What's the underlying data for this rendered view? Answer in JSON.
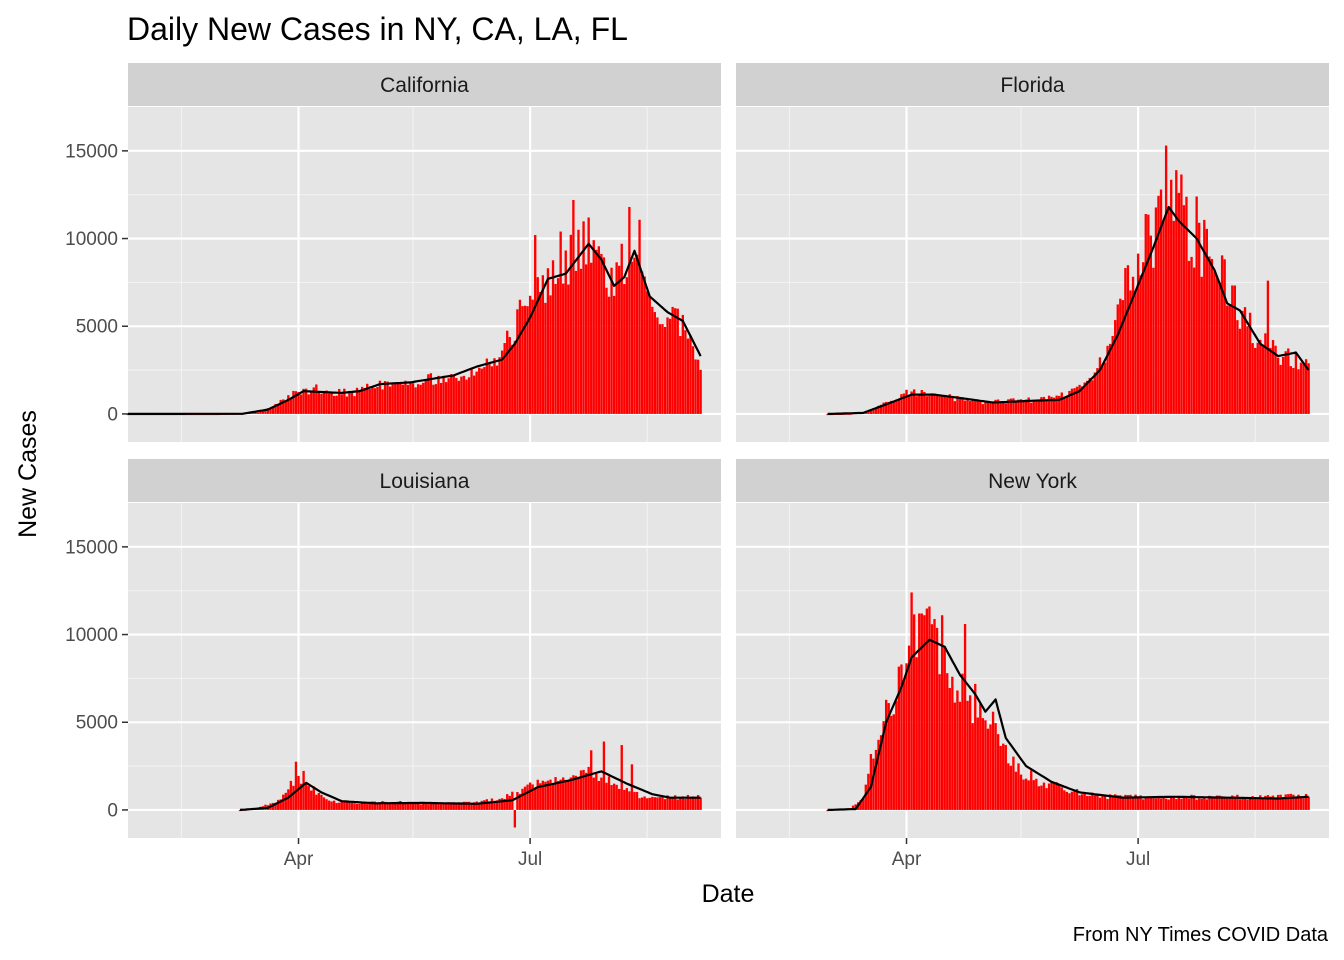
{
  "chart_data": {
    "type": "bar",
    "title": "Daily New Cases in NY, CA, LA, FL",
    "xlabel": "Date",
    "ylabel": "New Cases",
    "caption": "From NY Times COVID Data",
    "x_range": [
      "2020-01-25",
      "2020-09-14"
    ],
    "ylim": [
      -1600,
      17500
    ],
    "y_ticks": [
      0,
      5000,
      10000,
      15000
    ],
    "y_tick_labels": [
      "0",
      "5000",
      "10000",
      "15000"
    ],
    "x_ticks": [
      {
        "date": "2020-04-01",
        "label": "Apr"
      },
      {
        "date": "2020-07-01",
        "label": "Jul"
      }
    ],
    "x_minor_ticks": [
      "2020-02-15",
      "2020-05-16",
      "2020-08-16"
    ],
    "grid": true,
    "legend": "none",
    "bar_color": "#ff0000",
    "line_color": "#000000",
    "panel_background": "#e5e5e5",
    "strip_background": "#d1d1d1",
    "series_format": "each series lists one value per day from start_date to end_date",
    "panels": [
      {
        "name": "California",
        "start_date": "2020-01-25",
        "end_date": "2020-09-06",
        "daily_anchors": [
          [
            "2020-01-25",
            0
          ],
          [
            "2020-02-29",
            2
          ],
          [
            "2020-03-10",
            30
          ],
          [
            "2020-03-17",
            120
          ],
          [
            "2020-03-22",
            400
          ],
          [
            "2020-03-27",
            900
          ],
          [
            "2020-04-02",
            1300
          ],
          [
            "2020-04-08",
            1400
          ],
          [
            "2020-04-15",
            1250
          ],
          [
            "2020-04-22",
            1200
          ],
          [
            "2020-05-01",
            1600
          ],
          [
            "2020-05-15",
            1750
          ],
          [
            "2020-06-01",
            2200
          ],
          [
            "2020-06-10",
            2600
          ],
          [
            "2020-06-20",
            3300
          ],
          [
            "2020-06-25",
            5200
          ],
          [
            "2020-07-01",
            6800
          ],
          [
            "2020-07-08",
            8000
          ],
          [
            "2020-07-15",
            8400
          ],
          [
            "2020-07-22",
            9800
          ],
          [
            "2020-07-28",
            8500
          ],
          [
            "2020-08-03",
            7200
          ],
          [
            "2020-08-08",
            8900
          ],
          [
            "2020-08-13",
            9600
          ],
          [
            "2020-08-18",
            6500
          ],
          [
            "2020-08-23",
            5700
          ],
          [
            "2020-08-28",
            5400
          ],
          [
            "2020-09-02",
            4200
          ],
          [
            "2020-09-06",
            3100
          ]
        ],
        "peaks": [
          [
            "2020-07-18",
            12200
          ],
          [
            "2020-08-09",
            11800
          ],
          [
            "2020-07-24",
            11200
          ],
          [
            "2020-07-13",
            10400
          ],
          [
            "2020-07-20",
            10500
          ],
          [
            "2020-08-16",
            7000
          ],
          [
            "2020-07-03",
            10200
          ]
        ],
        "avg_anchors": [
          [
            "2020-01-25",
            0
          ],
          [
            "2020-03-10",
            10
          ],
          [
            "2020-03-20",
            250
          ],
          [
            "2020-03-28",
            800
          ],
          [
            "2020-04-03",
            1300
          ],
          [
            "2020-04-10",
            1250
          ],
          [
            "2020-04-18",
            1200
          ],
          [
            "2020-04-25",
            1300
          ],
          [
            "2020-05-03",
            1700
          ],
          [
            "2020-05-15",
            1800
          ],
          [
            "2020-06-01",
            2200
          ],
          [
            "2020-06-10",
            2700
          ],
          [
            "2020-06-20",
            3100
          ],
          [
            "2020-06-25",
            4000
          ],
          [
            "2020-07-01",
            5500
          ],
          [
            "2020-07-08",
            7700
          ],
          [
            "2020-07-15",
            8000
          ],
          [
            "2020-07-24",
            9700
          ],
          [
            "2020-07-29",
            8800
          ],
          [
            "2020-08-03",
            7300
          ],
          [
            "2020-08-07",
            7800
          ],
          [
            "2020-08-11",
            9300
          ],
          [
            "2020-08-17",
            6700
          ],
          [
            "2020-08-24",
            5800
          ],
          [
            "2020-08-30",
            5300
          ],
          [
            "2020-09-06",
            3300
          ]
        ]
      },
      {
        "name": "Florida",
        "start_date": "2020-03-01",
        "end_date": "2020-09-06",
        "daily_anchors": [
          [
            "2020-03-01",
            0
          ],
          [
            "2020-03-10",
            20
          ],
          [
            "2020-03-17",
            150
          ],
          [
            "2020-03-25",
            700
          ],
          [
            "2020-04-01",
            1200
          ],
          [
            "2020-04-08",
            1150
          ],
          [
            "2020-04-20",
            900
          ],
          [
            "2020-05-01",
            700
          ],
          [
            "2020-05-15",
            750
          ],
          [
            "2020-05-29",
            900
          ],
          [
            "2020-06-07",
            1300
          ],
          [
            "2020-06-14",
            2200
          ],
          [
            "2020-06-20",
            4000
          ],
          [
            "2020-06-25",
            7000
          ],
          [
            "2020-07-01",
            8500
          ],
          [
            "2020-07-08",
            10500
          ],
          [
            "2020-07-12",
            12500
          ],
          [
            "2020-07-18",
            11500
          ],
          [
            "2020-07-25",
            10000
          ],
          [
            "2020-08-01",
            8000
          ],
          [
            "2020-08-08",
            6500
          ],
          [
            "2020-08-15",
            4800
          ],
          [
            "2020-08-22",
            3600
          ],
          [
            "2020-08-29",
            3200
          ],
          [
            "2020-09-06",
            2600
          ]
        ],
        "peaks": [
          [
            "2020-07-12",
            15300
          ],
          [
            "2020-07-16",
            13900
          ],
          [
            "2020-07-24",
            12400
          ],
          [
            "2020-07-04",
            11400
          ],
          [
            "2020-08-21",
            7600
          ],
          [
            "2020-07-19",
            11900
          ]
        ],
        "avg_anchors": [
          [
            "2020-03-01",
            0
          ],
          [
            "2020-03-15",
            60
          ],
          [
            "2020-03-25",
            600
          ],
          [
            "2020-04-03",
            1100
          ],
          [
            "2020-04-12",
            1100
          ],
          [
            "2020-04-25",
            850
          ],
          [
            "2020-05-05",
            650
          ],
          [
            "2020-05-20",
            750
          ],
          [
            "2020-05-31",
            800
          ],
          [
            "2020-06-08",
            1300
          ],
          [
            "2020-06-16",
            2500
          ],
          [
            "2020-06-23",
            4500
          ],
          [
            "2020-06-30",
            7000
          ],
          [
            "2020-07-07",
            9500
          ],
          [
            "2020-07-13",
            11800
          ],
          [
            "2020-07-17",
            11000
          ],
          [
            "2020-07-24",
            10000
          ],
          [
            "2020-07-31",
            8200
          ],
          [
            "2020-08-05",
            6300
          ],
          [
            "2020-08-10",
            5900
          ],
          [
            "2020-08-18",
            4000
          ],
          [
            "2020-08-25",
            3300
          ],
          [
            "2020-09-01",
            3500
          ],
          [
            "2020-09-06",
            2500
          ]
        ]
      },
      {
        "name": "Louisiana",
        "start_date": "2020-03-09",
        "end_date": "2020-09-06",
        "daily_anchors": [
          [
            "2020-03-09",
            0
          ],
          [
            "2020-03-16",
            100
          ],
          [
            "2020-03-24",
            500
          ],
          [
            "2020-03-29",
            1500
          ],
          [
            "2020-04-03",
            1900
          ],
          [
            "2020-04-08",
            1000
          ],
          [
            "2020-04-15",
            500
          ],
          [
            "2020-04-25",
            400
          ],
          [
            "2020-05-10",
            450
          ],
          [
            "2020-05-25",
            350
          ],
          [
            "2020-06-08",
            400
          ],
          [
            "2020-06-20",
            650
          ],
          [
            "2020-06-28",
            1200
          ],
          [
            "2020-07-06",
            1700
          ],
          [
            "2020-07-14",
            2000
          ],
          [
            "2020-07-24",
            2300
          ],
          [
            "2020-08-03",
            1600
          ],
          [
            "2020-08-13",
            800
          ],
          [
            "2020-08-25",
            700
          ],
          [
            "2020-09-06",
            750
          ]
        ],
        "peaks": [
          [
            "2020-03-31",
            2750
          ],
          [
            "2020-07-30",
            3900
          ],
          [
            "2020-08-06",
            3700
          ],
          [
            "2020-07-25",
            3400
          ],
          [
            "2020-06-25",
            -1000
          ],
          [
            "2020-08-10",
            2600
          ]
        ],
        "avg_anchors": [
          [
            "2020-03-09",
            0
          ],
          [
            "2020-03-20",
            120
          ],
          [
            "2020-03-28",
            700
          ],
          [
            "2020-04-04",
            1550
          ],
          [
            "2020-04-10",
            1000
          ],
          [
            "2020-04-18",
            500
          ],
          [
            "2020-05-01",
            380
          ],
          [
            "2020-05-20",
            400
          ],
          [
            "2020-06-10",
            350
          ],
          [
            "2020-06-24",
            550
          ],
          [
            "2020-07-04",
            1300
          ],
          [
            "2020-07-17",
            1700
          ],
          [
            "2020-07-29",
            2200
          ],
          [
            "2020-08-08",
            1500
          ],
          [
            "2020-08-18",
            900
          ],
          [
            "2020-08-25",
            700
          ],
          [
            "2020-09-06",
            700
          ]
        ]
      },
      {
        "name": "New York",
        "start_date": "2020-03-01",
        "end_date": "2020-09-06",
        "daily_anchors": [
          [
            "2020-03-01",
            0
          ],
          [
            "2020-03-10",
            100
          ],
          [
            "2020-03-15",
            700
          ],
          [
            "2020-03-19",
            3500
          ],
          [
            "2020-03-24",
            6000
          ],
          [
            "2020-03-30",
            7500
          ],
          [
            "2020-04-05",
            9800
          ],
          [
            "2020-04-10",
            10000
          ],
          [
            "2020-04-16",
            8500
          ],
          [
            "2020-04-22",
            7000
          ],
          [
            "2020-04-28",
            6000
          ],
          [
            "2020-05-05",
            4500
          ],
          [
            "2020-05-14",
            2400
          ],
          [
            "2020-05-24",
            1600
          ],
          [
            "2020-06-04",
            1100
          ],
          [
            "2020-06-20",
            750
          ],
          [
            "2020-07-10",
            750
          ],
          [
            "2020-08-01",
            700
          ],
          [
            "2020-09-06",
            800
          ]
        ],
        "peaks": [
          [
            "2020-04-03",
            12400
          ],
          [
            "2020-04-10",
            11600
          ],
          [
            "2020-04-07",
            11200
          ],
          [
            "2020-04-15",
            11100
          ],
          [
            "2020-04-24",
            10600
          ],
          [
            "2020-05-05",
            5600
          ]
        ],
        "avg_anchors": [
          [
            "2020-03-01",
            0
          ],
          [
            "2020-03-12",
            50
          ],
          [
            "2020-03-18",
            1300
          ],
          [
            "2020-03-24",
            5000
          ],
          [
            "2020-03-30",
            7000
          ],
          [
            "2020-04-03",
            8700
          ],
          [
            "2020-04-10",
            9700
          ],
          [
            "2020-04-16",
            9300
          ],
          [
            "2020-04-22",
            7700
          ],
          [
            "2020-04-28",
            6600
          ],
          [
            "2020-05-02",
            5600
          ],
          [
            "2020-05-06",
            6300
          ],
          [
            "2020-05-10",
            4100
          ],
          [
            "2020-05-18",
            2500
          ],
          [
            "2020-05-28",
            1600
          ],
          [
            "2020-06-08",
            1000
          ],
          [
            "2020-06-25",
            700
          ],
          [
            "2020-07-15",
            750
          ],
          [
            "2020-08-05",
            700
          ],
          [
            "2020-08-25",
            650
          ],
          [
            "2020-09-06",
            750
          ]
        ]
      }
    ]
  }
}
